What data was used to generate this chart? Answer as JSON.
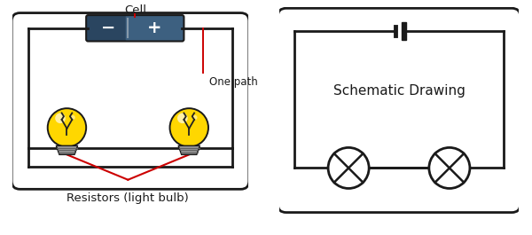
{
  "bg_color": "#ffffff",
  "circuit_color": "#1a1a1a",
  "red_wire_color": "#cc0000",
  "battery_body_color": "#3d6080",
  "battery_dark_color": "#2a4560",
  "battery_divider_color": "#8899aa",
  "bulb_yellow": "#FFD700",
  "bulb_highlight": "#FFEE88",
  "bulb_base_color": "#909090",
  "bulb_filament_color": "#222222",
  "cell_label": "Cell",
  "one_path_label": "One path",
  "resistors_label": "Resistors (light bulb)",
  "schematic_label": "Schematic Drawing",
  "label_fontsize": 9.5,
  "schematic_fontsize": 11
}
